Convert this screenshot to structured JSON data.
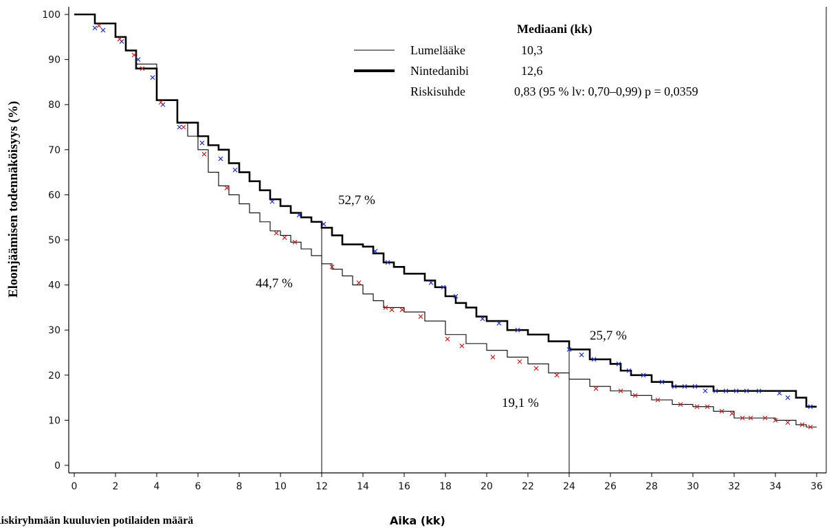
{
  "chart_data": {
    "type": "line",
    "ylabel": "Eloonjäämisen todennäköisyys (%)",
    "xlabel": "Aika (kk)",
    "footnote": "Riskiryhmään kuuluvien potilaiden määrä",
    "xlim": [
      0,
      36
    ],
    "ylim": [
      0,
      100
    ],
    "x_ticks": [
      0,
      2,
      4,
      6,
      8,
      10,
      12,
      14,
      16,
      18,
      20,
      22,
      24,
      26,
      28,
      30,
      32,
      34,
      36
    ],
    "y_ticks": [
      0,
      10,
      20,
      30,
      40,
      50,
      60,
      70,
      80,
      90,
      100
    ],
    "legend": {
      "title": "Mediaani (kk)",
      "entries": [
        {
          "label": "Lumelääke",
          "value": "10,3"
        },
        {
          "label": "Nintedanibi",
          "value": "12,6"
        }
      ],
      "hazard_label": "Riskisuhde",
      "hazard_value": "0,83 (95 % lv: 0,70–0,99) p = 0,0359"
    },
    "series": [
      {
        "name": "Nintedanibi",
        "line_color": "#000000",
        "censor_color": "#2233cc",
        "x": [
          0,
          1,
          2,
          2.5,
          3,
          4,
          5,
          6,
          6.5,
          7,
          7.5,
          8,
          8.5,
          9,
          9.5,
          10,
          10.5,
          11,
          11.5,
          12,
          12.5,
          13,
          14,
          14.5,
          15,
          15.5,
          16,
          17,
          17.5,
          18,
          18.5,
          19,
          19.5,
          20,
          21,
          22,
          23,
          24,
          25,
          26,
          26.5,
          27,
          28,
          29,
          30,
          31,
          32,
          33,
          34,
          35,
          35.5,
          36
        ],
        "y": [
          100,
          98,
          95,
          92,
          88,
          81,
          76,
          73,
          71,
          70,
          67,
          65,
          63,
          61,
          59,
          57.5,
          56,
          55,
          54,
          52.7,
          51,
          49,
          48.5,
          47,
          45,
          44,
          42.5,
          41,
          39.5,
          37.5,
          36,
          35,
          33,
          32,
          30,
          29,
          27.5,
          25.7,
          23.5,
          22.5,
          21,
          20,
          18.5,
          17.5,
          17.5,
          16.5,
          16.5,
          16.5,
          16.5,
          15,
          13,
          13
        ],
        "censor_x": [
          1,
          1.4,
          2.3,
          3.1,
          3.8,
          4.3,
          5.1,
          6.2,
          7.1,
          7.8,
          9.6,
          10.9,
          12.1,
          14.6,
          15.2,
          17.3,
          17.9,
          18.5,
          19.8,
          20.6,
          21.5,
          24.0,
          24.6,
          25.2,
          26.4,
          26.9,
          27.6,
          28.5,
          29.1,
          29.6,
          30.1,
          30.6,
          31.1,
          31.6,
          32.1,
          32.6,
          33.2,
          34.2,
          34.6,
          35.7
        ],
        "censor_y": [
          97,
          96.5,
          94,
          90,
          86,
          80,
          75,
          71.5,
          68,
          65.5,
          58.5,
          55.5,
          53.5,
          47.5,
          45,
          40.5,
          39.5,
          37.5,
          32.5,
          31.5,
          30,
          25.7,
          24.5,
          23.5,
          22.5,
          21,
          20,
          18.5,
          17.5,
          17.5,
          17.5,
          16.5,
          16.5,
          16.5,
          16.5,
          16.5,
          16.5,
          16,
          15,
          13
        ]
      },
      {
        "name": "Lumelääke",
        "line_color": "#000000",
        "censor_color": "#cc2222",
        "x": [
          0,
          1,
          2,
          2.5,
          3,
          4,
          5,
          5.5,
          6,
          6.5,
          7,
          7.5,
          8,
          8.5,
          9,
          9.5,
          10,
          10.5,
          11,
          11.5,
          12,
          12.5,
          13,
          13.5,
          14,
          14.5,
          15,
          16,
          17,
          18,
          19,
          20,
          21,
          22,
          23,
          24,
          25,
          26,
          27,
          28,
          29,
          30,
          31,
          32,
          33,
          34,
          35,
          35.5,
          36
        ],
        "y": [
          100,
          98,
          95,
          92,
          89,
          81,
          76,
          73,
          70,
          65,
          62,
          60,
          58,
          56,
          54,
          52,
          51,
          49.5,
          48,
          46.5,
          44.7,
          43.5,
          42,
          40,
          38,
          36.5,
          35,
          34,
          32,
          29,
          27,
          25.5,
          24,
          22.5,
          20.5,
          19.1,
          17.5,
          16.5,
          15.5,
          14.5,
          13.5,
          13,
          12,
          10.5,
          10.5,
          10,
          9,
          8.5,
          8.5
        ],
        "censor_x": [
          1.2,
          2.2,
          2.9,
          3.3,
          4.2,
          5.3,
          6.3,
          7.4,
          9.8,
          10.2,
          10.7,
          12.5,
          13.8,
          15.1,
          15.4,
          15.9,
          16.8,
          18.1,
          18.8,
          20.3,
          21.6,
          22.4,
          23.4,
          25.3,
          26.5,
          27.2,
          28.3,
          29.4,
          30.2,
          30.7,
          31.4,
          31.9,
          32.4,
          32.8,
          33.5,
          34.0,
          34.6,
          35.3,
          35.7
        ],
        "censor_y": [
          97.5,
          94.5,
          91,
          88,
          80.5,
          75,
          69,
          61.5,
          51.5,
          50.5,
          49.5,
          44,
          40.5,
          35,
          34.5,
          34.5,
          33,
          28,
          26.5,
          24,
          23,
          21.5,
          20,
          17,
          16.5,
          15.5,
          14.5,
          13.5,
          13,
          13,
          12,
          11.5,
          10.5,
          10.5,
          10.5,
          10,
          9.5,
          9,
          8.5
        ]
      }
    ],
    "annotations": [
      {
        "x": 12,
        "y": 52.7,
        "label": "52,7 %"
      },
      {
        "x": 12,
        "y": 44.7,
        "label": "44,7 %"
      },
      {
        "x": 24,
        "y": 25.7,
        "label": "25,7 %"
      },
      {
        "x": 24,
        "y": 19.1,
        "label": "19,1 %"
      }
    ]
  }
}
